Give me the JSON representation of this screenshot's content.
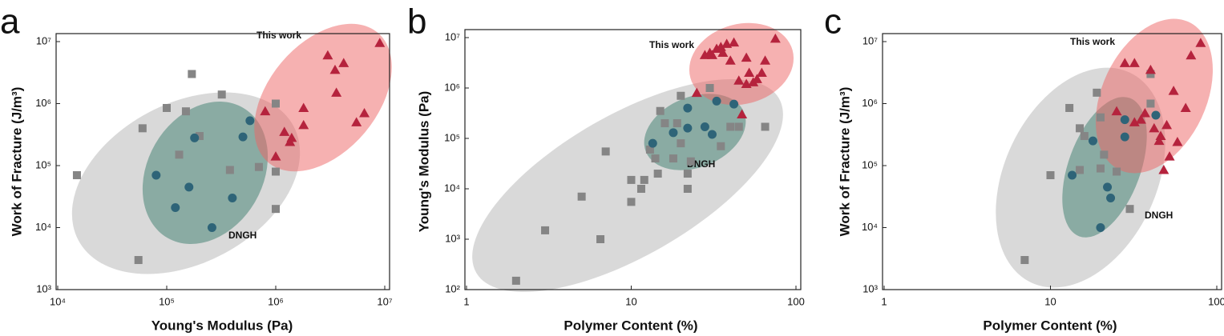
{
  "chart_data": [
    {
      "type": "scatter",
      "panel_label": "a",
      "xlabel": "Young's Modulus (Pa)",
      "ylabel": "Work of Fracture (J/m³)",
      "annotations": [
        "This work",
        "DNGH"
      ],
      "xscale": "log",
      "yscale": "log",
      "xlim": [
        10000,
        10000000
      ],
      "ylim": [
        1000,
        10000000
      ],
      "xticks": [
        {
          "value": 10000,
          "label": "10⁴"
        },
        {
          "value": 100000,
          "label": "10⁵"
        },
        {
          "value": 1000000,
          "label": "10⁶"
        },
        {
          "value": 10000000,
          "label": "10⁷"
        }
      ],
      "yticks": [
        {
          "value": 1000,
          "label": "10³"
        },
        {
          "value": 10000,
          "label": "10⁴"
        },
        {
          "value": 100000,
          "label": "10⁵"
        },
        {
          "value": 1000000,
          "label": "10⁶"
        },
        {
          "value": 10000000,
          "label": "10⁷"
        }
      ],
      "series": [
        {
          "color": "#858585",
          "marker": "square",
          "x": [
            15000,
            55000,
            60000,
            100000,
            130000,
            150000,
            170000,
            200000,
            320000,
            380000,
            700000,
            1000000,
            1000000,
            1000000
          ],
          "values": [
            70000,
            3000,
            400000,
            850000,
            150000,
            750000,
            3000000,
            300000,
            1400000,
            85000,
            95000,
            1000000,
            80000,
            20000
          ]
        },
        {
          "color": "#2e6478",
          "marker": "circle",
          "x": [
            80000,
            120000,
            160000,
            180000,
            260000,
            400000,
            500000,
            580000
          ],
          "values": [
            70000,
            21000,
            45000,
            280000,
            10000,
            30000,
            290000,
            530000
          ]
        },
        {
          "color": "#b5233d",
          "marker": "triangle",
          "x": [
            800000,
            1000000,
            1200000,
            1350000,
            1400000,
            1800000,
            1800000,
            3000000,
            3500000,
            4200000,
            3600000,
            5500000,
            6500000,
            9000000
          ],
          "values": [
            750000,
            140000,
            350000,
            240000,
            280000,
            850000,
            450000,
            6000000,
            3500000,
            4500000,
            1500000,
            500000,
            700000,
            9500000
          ]
        }
      ]
    },
    {
      "type": "scatter",
      "panel_label": "b",
      "xlabel": "Polymer Content (%)",
      "ylabel": "Young's Modulus (Pa)",
      "annotations": [
        "This work",
        "DNGH"
      ],
      "xscale": "log",
      "yscale": "log",
      "xlim": [
        1,
        100
      ],
      "ylim": [
        100,
        10000000
      ],
      "xticks": [
        1,
        10,
        100
      ],
      "yticks": [
        {
          "value": 100,
          "label": "10²"
        },
        {
          "value": 1000,
          "label": "10³"
        },
        {
          "value": 10000,
          "label": "10⁴"
        },
        {
          "value": 100000,
          "label": "10⁵"
        },
        {
          "value": 1000000,
          "label": "10⁶"
        },
        {
          "value": 10000000,
          "label": "10⁷"
        }
      ],
      "series": [
        {
          "color": "#858585",
          "marker": "square",
          "x": [
            2,
            3,
            5,
            6.5,
            7,
            10,
            10,
            11.5,
            12,
            13,
            14,
            14.5,
            15,
            16,
            18,
            19,
            20,
            20,
            22,
            22,
            23,
            30,
            35,
            40,
            45,
            65
          ],
          "values": [
            150,
            1500,
            7000,
            1000,
            55000,
            5500,
            15000,
            10000,
            15000,
            60000,
            40000,
            20000,
            350000,
            200000,
            40000,
            200000,
            700000,
            80000,
            10000,
            20000,
            35000,
            1000000,
            70000,
            170000,
            170000,
            170000
          ]
        },
        {
          "color": "#2e6478",
          "marker": "circle",
          "x": [
            13.5,
            18,
            22,
            22,
            28,
            31,
            33,
            42
          ],
          "values": [
            80000,
            130000,
            160000,
            400000,
            170000,
            120000,
            550000,
            480000
          ]
        },
        {
          "color": "#b5233d",
          "marker": "triangle",
          "x": [
            25,
            28,
            30,
            31,
            33,
            35,
            36,
            38,
            40,
            42,
            45,
            47,
            50,
            50,
            52,
            55,
            58,
            62,
            65,
            75
          ],
          "values": [
            800000,
            4500000,
            5000000,
            4500000,
            6000000,
            6500000,
            5000000,
            7500000,
            3500000,
            8000000,
            1400000,
            300000,
            1200000,
            4000000,
            2000000,
            1300000,
            1500000,
            2000000,
            3500000,
            9500000
          ]
        }
      ]
    },
    {
      "type": "scatter",
      "panel_label": "c",
      "xlabel": "Polymer Content (%)",
      "ylabel": "Work of Fracture (J/m³)",
      "annotations": [
        "This work",
        "DNGH"
      ],
      "xscale": "log",
      "yscale": "log",
      "xlim": [
        1,
        100
      ],
      "ylim": [
        1000,
        10000000
      ],
      "xticks": [
        1,
        10,
        100
      ],
      "yticks": [
        {
          "value": 1000,
          "label": "10³"
        },
        {
          "value": 10000,
          "label": "10⁴"
        },
        {
          "value": 100000,
          "label": "10⁵"
        },
        {
          "value": 1000000,
          "label": "10⁶"
        },
        {
          "value": 10000000,
          "label": "10⁷"
        }
      ],
      "series": [
        {
          "color": "#858585",
          "marker": "square",
          "x": [
            7,
            10,
            13,
            15,
            15,
            16,
            19,
            20,
            20,
            21,
            25,
            30,
            40,
            40
          ],
          "values": [
            3000,
            70000,
            850000,
            400000,
            85000,
            300000,
            1500000,
            600000,
            90000,
            150000,
            80000,
            20000,
            3000000,
            1000000
          ]
        },
        {
          "color": "#2e6478",
          "marker": "circle",
          "x": [
            13.5,
            18,
            20,
            22,
            23,
            28,
            28,
            43
          ],
          "values": [
            70000,
            250000,
            10000,
            45000,
            30000,
            550000,
            290000,
            650000
          ]
        },
        {
          "color": "#b5233d",
          "marker": "triangle",
          "x": [
            25,
            28,
            32,
            32,
            35,
            37,
            40,
            42,
            45,
            46,
            48,
            50,
            52,
            55,
            58,
            65,
            70,
            80
          ],
          "values": [
            750000,
            4500000,
            4500000,
            500000,
            550000,
            700000,
            3500000,
            400000,
            250000,
            300000,
            85000,
            450000,
            140000,
            1600000,
            240000,
            850000,
            6000000,
            9500000
          ]
        }
      ]
    }
  ]
}
